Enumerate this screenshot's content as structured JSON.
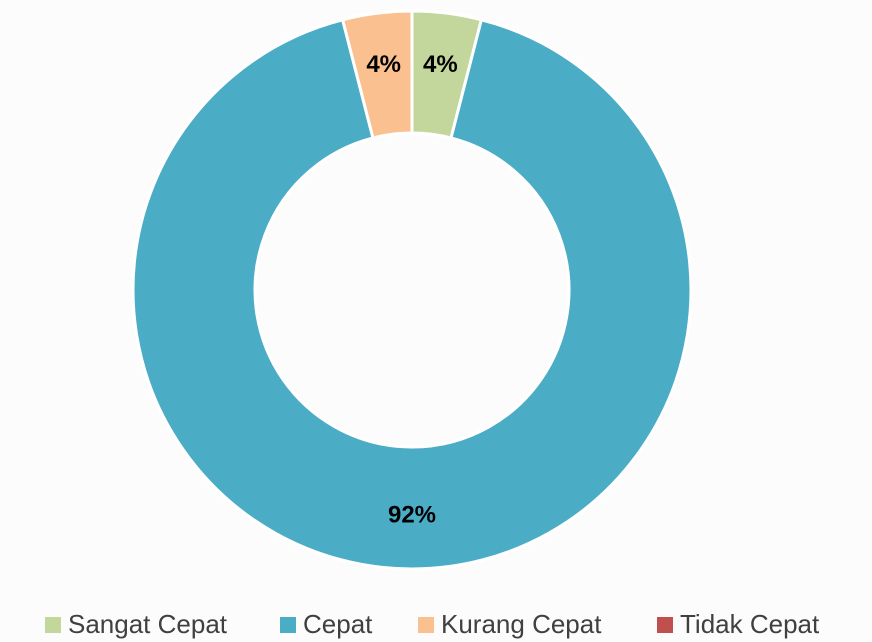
{
  "chart_data": {
    "type": "donut",
    "categories": [
      "Sangat Cepat",
      "Cepat",
      "Kurang Cepat",
      "Tidak Cepat"
    ],
    "values": [
      4,
      92,
      4,
      0
    ],
    "value_labels": [
      "4%",
      "92%",
      "4%",
      null
    ],
    "colors": [
      "#c3d69b",
      "#4bacc6",
      "#fac090",
      "#c0504d"
    ],
    "legend": "bottom"
  }
}
